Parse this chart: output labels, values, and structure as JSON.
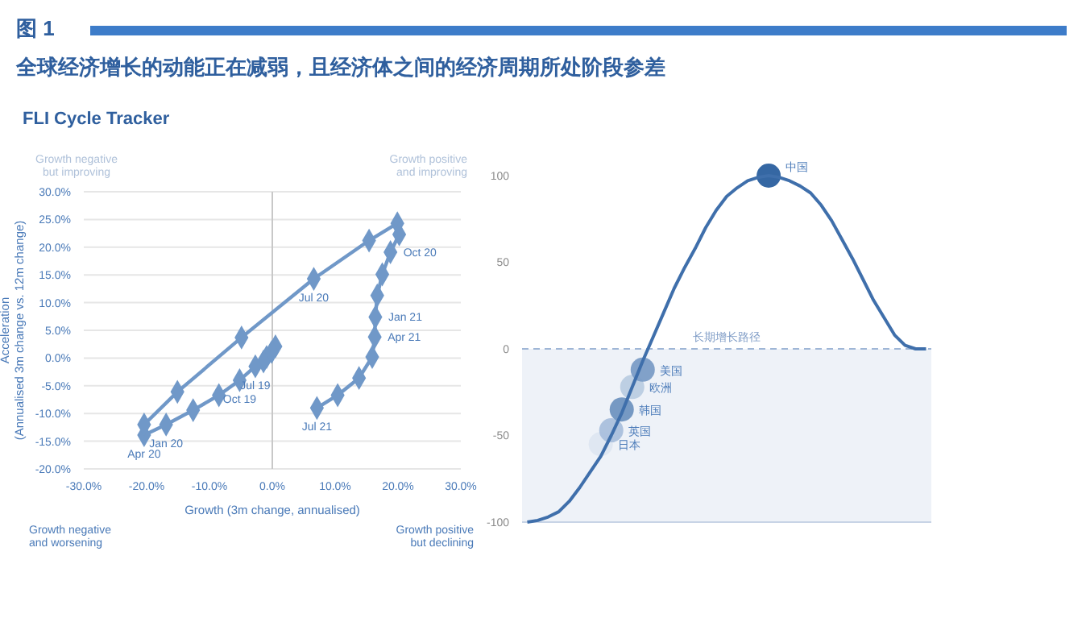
{
  "chart_data": [
    {
      "type": "line",
      "title": "全球经济增长的动能正在减弱，且经济体之间的经济周期所处阶段参差",
      "subtitle": "FLI Cycle Tracker",
      "xlabel": "Growth (3m change, annualised)",
      "ylabel": "Acceleration\n(Annualised 3m change vs. 12m change)",
      "x": [
        0.5,
        -0.1,
        -0.9,
        -1.4,
        -2.7,
        -5.2,
        -8.5,
        -12.6,
        -16.9,
        -20.4,
        -20.4,
        -15.1,
        -4.9,
        6.6,
        15.4,
        19.9,
        20.2,
        18.8,
        17.5,
        16.7,
        16.4,
        16.3,
        15.9,
        13.8,
        10.4,
        7.1
      ],
      "series": [
        {
          "color": "#7098c8",
          "values": [
            2.1,
            1.1,
            0.2,
            -0.6,
            -1.5,
            -4.0,
            -6.7,
            -9.4,
            -12.0,
            -13.9,
            -12.0,
            -6.1,
            3.7,
            14.3,
            21.2,
            24.3,
            22.3,
            19.1,
            15.1,
            11.3,
            7.4,
            3.8,
            0.2,
            -3.6,
            -6.7,
            -9.0
          ]
        }
      ],
      "marker": "diamond",
      "grid": "y",
      "xlim": [
        -30,
        30
      ],
      "xticks": [
        {
          "value": -30,
          "label": "-30.0%"
        },
        {
          "value": -20,
          "label": "-20.0%"
        },
        {
          "value": -10,
          "label": "-10.0%"
        },
        {
          "value": 0,
          "label": "0.0%"
        },
        {
          "value": 10,
          "label": "10.0%"
        },
        {
          "value": 20,
          "label": "20.0%"
        },
        {
          "value": 30,
          "label": "30.0%"
        }
      ],
      "ylim": [
        -20,
        30
      ],
      "yticks": [
        {
          "value": -20,
          "label": "-20.0%"
        },
        {
          "value": -15,
          "label": "-15.0%"
        },
        {
          "value": -10,
          "label": "-10.0%"
        },
        {
          "value": -5,
          "label": "-5.0%"
        },
        {
          "value": 0,
          "label": "0.0%"
        },
        {
          "value": 5,
          "label": "5.0%"
        },
        {
          "value": 10,
          "label": "10.0%"
        },
        {
          "value": 15,
          "label": "15.0%"
        },
        {
          "value": 20,
          "label": "20.0%"
        },
        {
          "value": 25,
          "label": "25.0%"
        },
        {
          "value": 30,
          "label": "30.0%"
        }
      ],
      "ref_lines": [
        {
          "axis": "x",
          "value": 0,
          "color": "#c8c8c8"
        }
      ],
      "annotations": [
        "图 1",
        "Growth negative\nbut improving",
        "Growth positive\nand improving",
        "Growth negative\nand worsening",
        "Growth positive\nbut declining",
        {
          "text": "Jul 19",
          "x": -2.7,
          "y": -1.5
        },
        {
          "text": "Oct 19",
          "x": -5.2,
          "y": -4.0
        },
        {
          "text": "Jan 20",
          "x": -16.9,
          "y": -12.0
        },
        {
          "text": "Apr 20",
          "x": -20.4,
          "y": -13.9
        },
        {
          "text": "Jul 20",
          "x": 6.6,
          "y": 14.3
        },
        {
          "text": "Oct 20",
          "x": 18.8,
          "y": 19.1
        },
        {
          "text": "Jan 21",
          "x": 16.4,
          "y": 7.4
        },
        {
          "text": "Apr 21",
          "x": 16.3,
          "y": 3.8
        },
        {
          "text": "Jul 21",
          "x": 7.1,
          "y": -9.0
        }
      ]
    },
    {
      "type": "line",
      "categories": [
        null,
        null,
        null,
        null,
        null,
        null,
        null,
        null,
        null,
        null,
        null,
        null,
        null,
        null,
        null,
        null,
        null,
        null,
        null,
        null,
        null,
        null,
        null,
        null,
        null,
        null,
        null,
        null,
        null,
        null,
        null,
        null,
        null,
        null,
        null,
        null,
        null,
        null,
        null
      ],
      "series": [
        {
          "color": "#3f6fab",
          "values": [
            -100,
            -99,
            -97,
            -94,
            -88,
            -80,
            -71,
            -62,
            -50,
            -37,
            -22,
            -7,
            7,
            21,
            35,
            47,
            58,
            70,
            80,
            88,
            93,
            97,
            99,
            100,
            99,
            97,
            94,
            90,
            83,
            74,
            63,
            52,
            40,
            28,
            18,
            8,
            2,
            0,
            0
          ]
        },
        {
          "type": "scatter",
          "name": "日本",
          "color": "#dde6f1",
          "values": [
            null,
            null,
            null,
            null,
            null,
            null,
            null,
            -55,
            null,
            null,
            null,
            null,
            null,
            null,
            null,
            null,
            null,
            null,
            null,
            null,
            null,
            null,
            null,
            null,
            null,
            null,
            null,
            null,
            null,
            null,
            null,
            null,
            null,
            null,
            null,
            null,
            null,
            null,
            null
          ]
        },
        {
          "type": "scatter",
          "name": "英国",
          "color": "#a9bfdc",
          "values": [
            null,
            null,
            null,
            null,
            null,
            null,
            null,
            null,
            -47,
            null,
            null,
            null,
            null,
            null,
            null,
            null,
            null,
            null,
            null,
            null,
            null,
            null,
            null,
            null,
            null,
            null,
            null,
            null,
            null,
            null,
            null,
            null,
            null,
            null,
            null,
            null,
            null,
            null,
            null
          ]
        },
        {
          "type": "scatter",
          "name": "韩国",
          "color": "#6f94c0",
          "values": [
            null,
            null,
            null,
            null,
            null,
            null,
            null,
            null,
            null,
            -35,
            null,
            null,
            null,
            null,
            null,
            null,
            null,
            null,
            null,
            null,
            null,
            null,
            null,
            null,
            null,
            null,
            null,
            null,
            null,
            null,
            null,
            null,
            null,
            null,
            null,
            null,
            null,
            null,
            null
          ]
        },
        {
          "type": "scatter",
          "name": "欧洲",
          "color": "#b9cce2",
          "values": [
            null,
            null,
            null,
            null,
            null,
            null,
            null,
            null,
            null,
            null,
            -22,
            null,
            null,
            null,
            null,
            null,
            null,
            null,
            null,
            null,
            null,
            null,
            null,
            null,
            null,
            null,
            null,
            null,
            null,
            null,
            null,
            null,
            null,
            null,
            null,
            null,
            null,
            null,
            null
          ]
        },
        {
          "type": "scatter",
          "name": "美国",
          "color": "#7a9cc6",
          "values": [
            null,
            null,
            null,
            null,
            null,
            null,
            null,
            null,
            null,
            null,
            null,
            -12,
            null,
            null,
            null,
            null,
            null,
            null,
            null,
            null,
            null,
            null,
            null,
            null,
            null,
            null,
            null,
            null,
            null,
            null,
            null,
            null,
            null,
            null,
            null,
            null,
            null,
            null,
            null
          ]
        },
        {
          "type": "scatter",
          "name": "中国",
          "color": "#2a5f9e",
          "values": [
            null,
            null,
            null,
            null,
            null,
            null,
            null,
            null,
            null,
            null,
            null,
            null,
            null,
            null,
            null,
            null,
            null,
            null,
            null,
            null,
            null,
            null,
            null,
            100,
            null,
            null,
            null,
            null,
            null,
            null,
            null,
            null,
            null,
            null,
            null,
            null,
            null,
            null,
            null
          ]
        }
      ],
      "ylim": [
        -100,
        100
      ],
      "yticks": [
        -100,
        -50,
        0,
        50,
        100
      ],
      "tick_labels": "y",
      "ref_lines": [
        {
          "axis": "y",
          "value": 0,
          "label": "长期增长路径",
          "color": "#9fb6d6",
          "line_style": "dashed"
        }
      ],
      "bands": [
        {
          "axis": "y",
          "from": -100,
          "to": 0,
          "color": "#eef2f8"
        }
      ]
    }
  ]
}
